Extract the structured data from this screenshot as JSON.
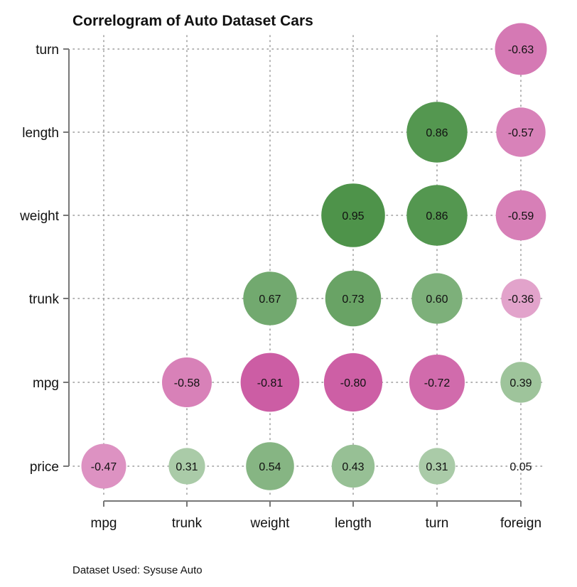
{
  "chart_data": {
    "type": "correlogram",
    "title": "Correlogram of Auto Dataset Cars",
    "note": "Dataset Used: Sysuse Auto",
    "x_labels": [
      "mpg",
      "trunk",
      "weight",
      "length",
      "turn",
      "foreign"
    ],
    "y_labels": [
      "price",
      "mpg",
      "trunk",
      "weight",
      "length",
      "turn"
    ],
    "cells": [
      {
        "row": "turn",
        "col": "foreign",
        "value": -0.63,
        "label": "-0.63"
      },
      {
        "row": "length",
        "col": "turn",
        "value": 0.86,
        "label": "0.86"
      },
      {
        "row": "length",
        "col": "foreign",
        "value": -0.57,
        "label": "-0.57"
      },
      {
        "row": "weight",
        "col": "length",
        "value": 0.95,
        "label": "0.95"
      },
      {
        "row": "weight",
        "col": "turn",
        "value": 0.86,
        "label": "0.86"
      },
      {
        "row": "weight",
        "col": "foreign",
        "value": -0.59,
        "label": "-0.59"
      },
      {
        "row": "trunk",
        "col": "weight",
        "value": 0.67,
        "label": "0.67"
      },
      {
        "row": "trunk",
        "col": "length",
        "value": 0.73,
        "label": "0.73"
      },
      {
        "row": "trunk",
        "col": "turn",
        "value": 0.6,
        "label": "0.60"
      },
      {
        "row": "trunk",
        "col": "foreign",
        "value": -0.36,
        "label": "-0.36"
      },
      {
        "row": "mpg",
        "col": "trunk",
        "value": -0.58,
        "label": "-0.58"
      },
      {
        "row": "mpg",
        "col": "weight",
        "value": -0.81,
        "label": "-0.81"
      },
      {
        "row": "mpg",
        "col": "length",
        "value": -0.8,
        "label": "-0.80"
      },
      {
        "row": "mpg",
        "col": "turn",
        "value": -0.72,
        "label": "-0.72"
      },
      {
        "row": "mpg",
        "col": "foreign",
        "value": 0.39,
        "label": "0.39"
      },
      {
        "row": "price",
        "col": "mpg",
        "value": -0.47,
        "label": "-0.47"
      },
      {
        "row": "price",
        "col": "trunk",
        "value": 0.31,
        "label": "0.31"
      },
      {
        "row": "price",
        "col": "weight",
        "value": 0.54,
        "label": "0.54"
      },
      {
        "row": "price",
        "col": "length",
        "value": 0.43,
        "label": "0.43"
      },
      {
        "row": "price",
        "col": "turn",
        "value": 0.31,
        "label": "0.31"
      },
      {
        "row": "price",
        "col": "foreign",
        "value": 0.05,
        "label": "0.05"
      }
    ],
    "colors": {
      "positive": "#4e934a",
      "negative": "#c84f9c",
      "grid": "#9a9a9a",
      "axis": "#777777"
    },
    "grid": true,
    "legend": "none"
  }
}
